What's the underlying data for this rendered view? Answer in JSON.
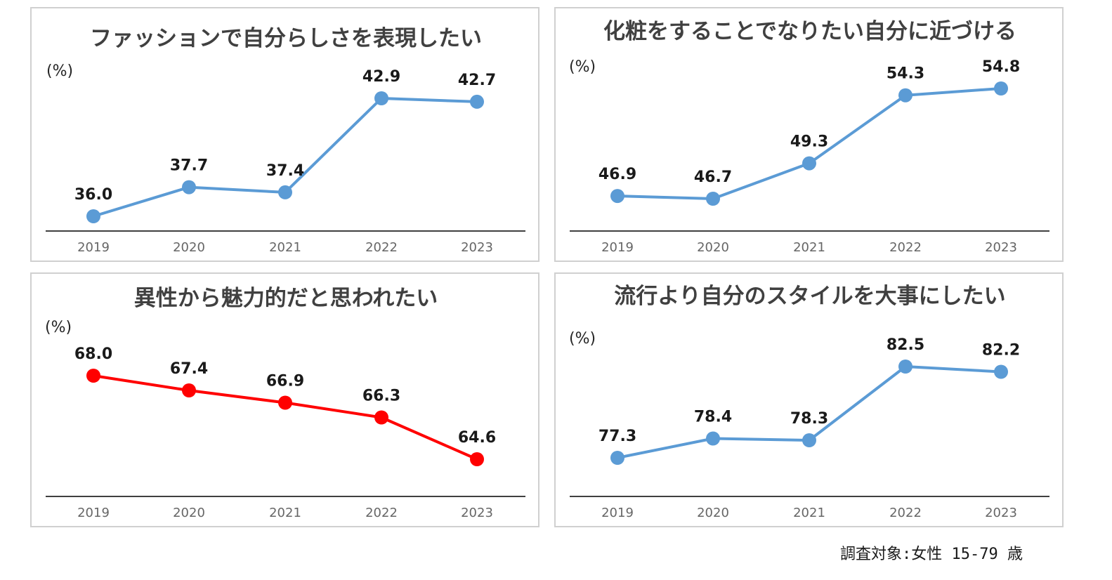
{
  "colors": {
    "blue": "#5b9bd5",
    "red": "#ff0000",
    "axis": "#404040",
    "border": "#d0d0d0"
  },
  "footnote": "調査対象:女性 15-79 歳",
  "chart_data": [
    {
      "type": "line",
      "title": "ファッションで自分らしさを表現したい",
      "unit_label": "(%)",
      "categories": [
        "2019",
        "2020",
        "2021",
        "2022",
        "2023"
      ],
      "series": [
        {
          "values": [
            36.0,
            37.7,
            37.4,
            42.9,
            42.7
          ],
          "labels": [
            "36.0",
            "37.7",
            "37.4",
            "42.9",
            "42.7"
          ],
          "color": "#5b9bd5"
        }
      ],
      "grid": false,
      "legend": "none"
    },
    {
      "type": "line",
      "title": "化粧をすることでなりたい自分に近づける",
      "unit_label": "(%)",
      "categories": [
        "2019",
        "2020",
        "2021",
        "2022",
        "2023"
      ],
      "series": [
        {
          "values": [
            46.9,
            46.7,
            49.3,
            54.3,
            54.8
          ],
          "labels": [
            "46.9",
            "46.7",
            "49.3",
            "54.3",
            "54.8"
          ],
          "color": "#5b9bd5"
        }
      ],
      "grid": false,
      "legend": "none"
    },
    {
      "type": "line",
      "title": "異性から魅力的だと思われたい",
      "unit_label": "(%)",
      "categories": [
        "2019",
        "2020",
        "2021",
        "2022",
        "2023"
      ],
      "series": [
        {
          "values": [
            68.0,
            67.4,
            66.9,
            66.3,
            64.6
          ],
          "labels": [
            "68.0",
            "67.4",
            "66.9",
            "66.3",
            "64.6"
          ],
          "color": "#ff0000"
        }
      ],
      "grid": false,
      "legend": "none"
    },
    {
      "type": "line",
      "title": "流行より自分のスタイルを大事にしたい",
      "unit_label": "(%)",
      "categories": [
        "2019",
        "2020",
        "2021",
        "2022",
        "2023"
      ],
      "series": [
        {
          "values": [
            77.3,
            78.4,
            78.3,
            82.5,
            82.2
          ],
          "labels": [
            "77.3",
            "78.4",
            "78.3",
            "82.5",
            "82.2"
          ],
          "color": "#5b9bd5"
        }
      ],
      "grid": false,
      "legend": "none"
    }
  ]
}
